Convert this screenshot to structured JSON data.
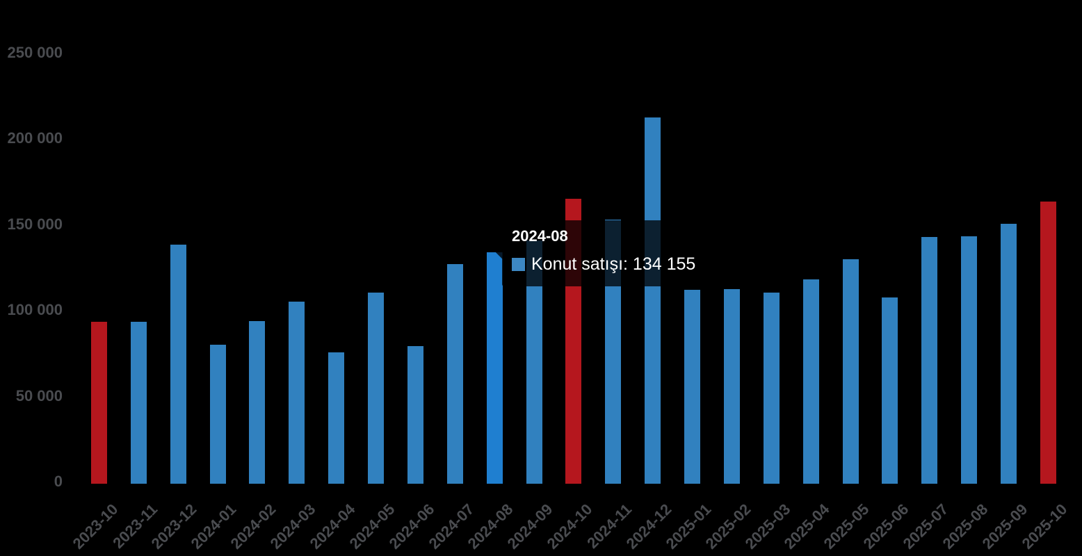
{
  "chart_data": {
    "type": "bar",
    "title": "",
    "xlabel": "",
    "ylabel": "",
    "categories": [
      "2023-10",
      "2023-11",
      "2023-12",
      "2024-01",
      "2024-02",
      "2024-03",
      "2024-04",
      "2024-05",
      "2024-06",
      "2024-07",
      "2024-08",
      "2024-09",
      "2024-10",
      "2024-11",
      "2024-12",
      "2025-01",
      "2025-02",
      "2025-03",
      "2025-04",
      "2025-05",
      "2025-06",
      "2025-07",
      "2025-08",
      "2025-09",
      "2025-10"
    ],
    "series": [
      {
        "name": "Konut satışı",
        "values": [
          93761,
          93514,
          138577,
          80308,
          93902,
          105394,
          75569,
          110588,
          79313,
          127088,
          134155,
          140919,
          165138,
          153014,
          212637,
          112173,
          112818,
          110795,
          118359,
          130025,
          107723,
          142858,
          143319,
          150657,
          163500
        ]
      }
    ],
    "ylim": [
      0,
      250000
    ],
    "yticks": [
      0,
      50000,
      100000,
      150000,
      200000,
      250000
    ],
    "ytick_labels": [
      "0",
      "50 000",
      "100 000",
      "150 000",
      "200 000",
      "250 000"
    ],
    "grid": false,
    "legend_position": "none",
    "background_color": "#000000",
    "axis_text_color": "#4a4c50",
    "colors": {
      "bar_default": "#3181bf",
      "bar_highlight_month": "#b5171e",
      "bar_hovered": "#1f7fd0"
    },
    "highlight_month_categories": [
      "2023-10",
      "2024-10",
      "2025-10"
    ],
    "hovered_category": "2024-08"
  },
  "tooltip": {
    "title": "2024-08",
    "series_label": "Konut satışı",
    "value": 134155,
    "text": "Konut satışı: 134 155",
    "swatch_color": "#3d87c2"
  }
}
